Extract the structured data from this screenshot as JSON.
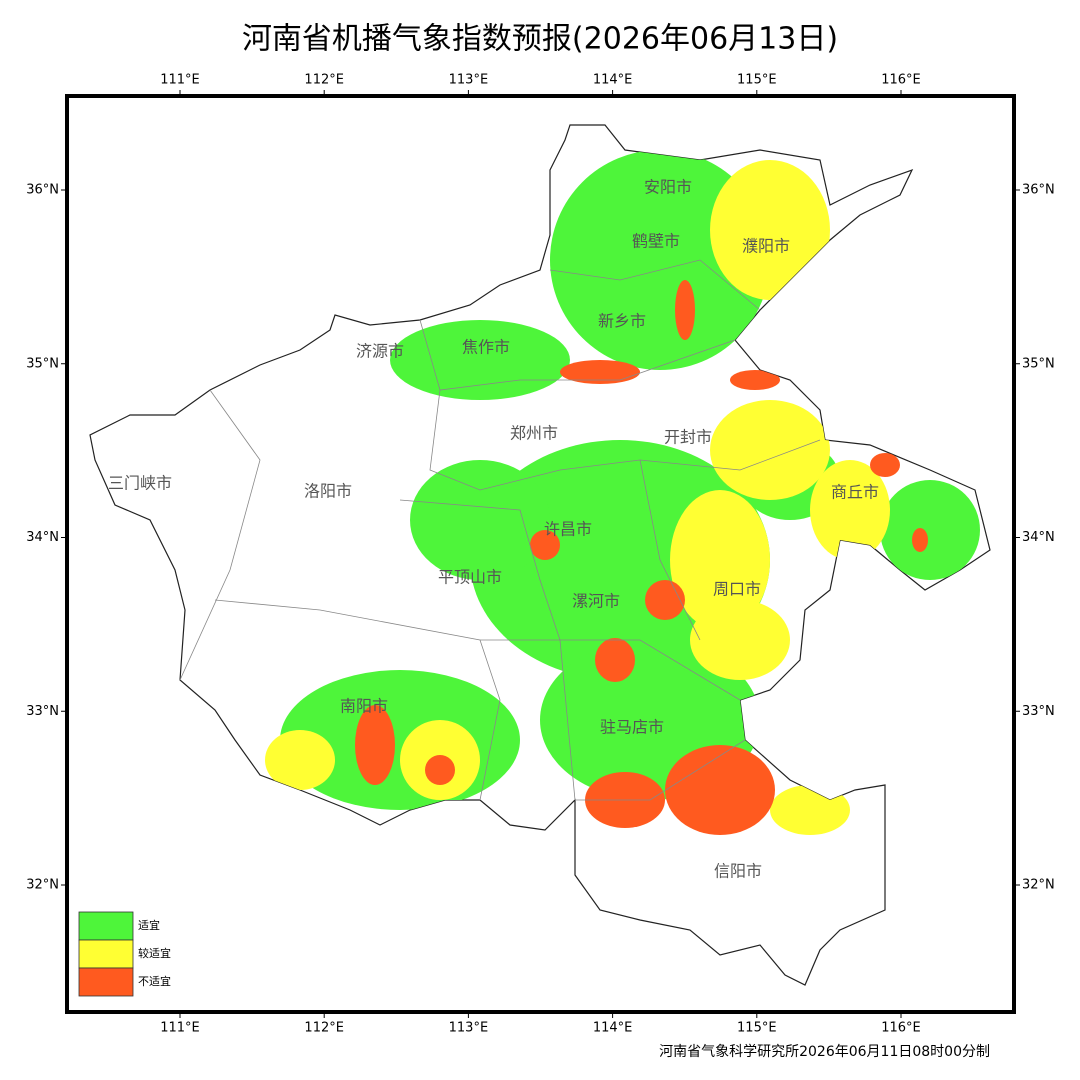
{
  "title": "河南省机播气象指数预报(2026年06月13日)",
  "map": {
    "xticks": [
      {
        "value": 111,
        "label": "111°E"
      },
      {
        "value": 112,
        "label": "112°E"
      },
      {
        "value": 113,
        "label": "113°E"
      },
      {
        "value": 114,
        "label": "114°E"
      },
      {
        "value": 115,
        "label": "115°E"
      },
      {
        "value": 116,
        "label": "116°E"
      }
    ],
    "yticks": [
      {
        "value": 36,
        "label": "36°N"
      },
      {
        "value": 35,
        "label": "35°N"
      },
      {
        "value": 34,
        "label": "34°N"
      },
      {
        "value": 33,
        "label": "33°N"
      },
      {
        "value": 32,
        "label": "32°N"
      }
    ],
    "cities": [
      "安阳市",
      "鹤壁市",
      "濮阳市",
      "新乡市",
      "焦作市",
      "济源市",
      "郑州市",
      "开封市",
      "三门峡市",
      "洛阳市",
      "商丘市",
      "许昌市",
      "平顶山市",
      "漯河市",
      "周口市",
      "南阳市",
      "驻马店市",
      "信阳市"
    ],
    "legend": [
      {
        "label": "适宜",
        "color": "#4ef53a"
      },
      {
        "label": "较适宜",
        "color": "#ffff33"
      },
      {
        "label": "不适宜",
        "color": "#ff5a1f"
      }
    ]
  },
  "footer": "河南省气象科学研究所2026年06月11日08时00分制"
}
